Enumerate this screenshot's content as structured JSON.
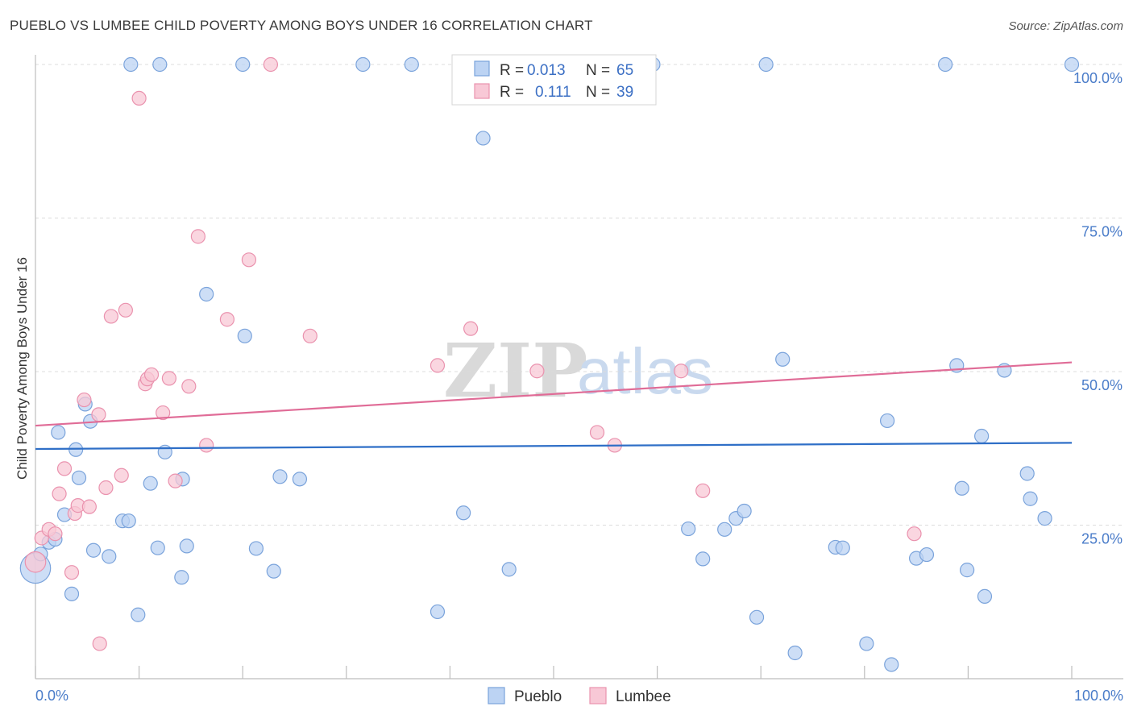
{
  "title": "PUEBLO VS LUMBEE CHILD POVERTY AMONG BOYS UNDER 16 CORRELATION CHART",
  "source": "Source: ZipAtlas.com",
  "watermark": {
    "zip": "ZIP",
    "atlas": "atlas"
  },
  "colors": {
    "pueblo_fill": "#bcd3f3",
    "pueblo_stroke": "#7aa3db",
    "pueblo_line": "#2f6fc7",
    "lumbee_fill": "#f8c8d6",
    "lumbee_stroke": "#ea92ae",
    "lumbee_line": "#e06c97",
    "grid": "#dcdcdc",
    "axis_label": "#4a7cc9"
  },
  "legend": {
    "pueblo": {
      "r_label": "R = ",
      "r_value": "0.013",
      "n_label": "N = ",
      "n_value": "65"
    },
    "lumbee": {
      "r_label": "R = ",
      "r_value": "0.111",
      "n_label": "N = ",
      "n_value": "39"
    }
  },
  "chart_data": {
    "type": "scatter",
    "title": "PUEBLO VS LUMBEE CHILD POVERTY AMONG BOYS UNDER 16 CORRELATION CHART",
    "xlabel": "",
    "ylabel": "Child Poverty Among Boys Under 16",
    "xlim": [
      0,
      100
    ],
    "ylim": [
      0,
      100
    ],
    "x_tick_labels": [
      "0.0%",
      "100.0%"
    ],
    "y_tick_labels": [
      "25.0%",
      "50.0%",
      "75.0%",
      "100.0%"
    ],
    "y_tick_values": [
      25,
      50,
      75,
      100
    ],
    "legend_position": "top-center",
    "series": [
      {
        "name": "Pueblo",
        "r": 0.013,
        "n": 65,
        "trend": {
          "x": [
            0,
            100
          ],
          "y": [
            37.4,
            38.4
          ]
        },
        "points": [
          [
            0.0,
            18.0,
            2.2
          ],
          [
            0.5,
            20.3,
            1
          ],
          [
            1.3,
            22.2,
            1
          ],
          [
            1.9,
            22.7,
            1
          ],
          [
            2.2,
            40.1,
            1
          ],
          [
            2.8,
            26.7,
            1
          ],
          [
            3.5,
            13.8,
            1
          ],
          [
            3.9,
            37.3,
            1
          ],
          [
            4.2,
            32.7,
            1
          ],
          [
            4.8,
            44.7,
            1
          ],
          [
            5.3,
            41.9,
            1
          ],
          [
            5.6,
            20.9,
            1
          ],
          [
            7.1,
            19.9,
            1
          ],
          [
            8.4,
            25.7,
            1
          ],
          [
            9.0,
            25.7,
            1
          ],
          [
            9.2,
            100.0,
            1
          ],
          [
            9.9,
            10.4,
            1
          ],
          [
            11.1,
            31.8,
            1
          ],
          [
            11.8,
            21.3,
            1
          ],
          [
            12.0,
            100.0,
            1
          ],
          [
            12.5,
            36.9,
            1
          ],
          [
            14.1,
            16.5,
            1
          ],
          [
            14.2,
            32.5,
            1
          ],
          [
            14.6,
            21.6,
            1
          ],
          [
            16.5,
            62.6,
            1
          ],
          [
            20.0,
            100.0,
            1
          ],
          [
            20.2,
            55.8,
            1
          ],
          [
            21.3,
            21.2,
            1
          ],
          [
            23.0,
            17.5,
            1
          ],
          [
            23.6,
            32.9,
            1
          ],
          [
            25.5,
            32.5,
            1
          ],
          [
            31.6,
            100.0,
            1
          ],
          [
            36.3,
            100.0,
            1
          ],
          [
            38.8,
            10.9,
            1
          ],
          [
            41.3,
            27.0,
            1
          ],
          [
            43.2,
            88.0,
            1
          ],
          [
            45.7,
            17.8,
            1
          ],
          [
            59.6,
            100.0,
            1
          ],
          [
            63.0,
            24.4,
            1
          ],
          [
            64.4,
            19.5,
            1
          ],
          [
            66.5,
            24.3,
            1
          ],
          [
            67.6,
            26.1,
            1
          ],
          [
            68.4,
            27.3,
            1
          ],
          [
            69.6,
            10.0,
            1
          ],
          [
            70.5,
            100.0,
            1
          ],
          [
            72.1,
            52.0,
            1
          ],
          [
            73.3,
            4.2,
            1
          ],
          [
            77.2,
            21.4,
            1
          ],
          [
            77.9,
            21.3,
            1
          ],
          [
            80.2,
            5.7,
            1
          ],
          [
            82.2,
            42.0,
            1
          ],
          [
            82.6,
            2.3,
            1
          ],
          [
            85.0,
            19.6,
            1
          ],
          [
            86.0,
            20.2,
            1
          ],
          [
            87.8,
            100.0,
            1
          ],
          [
            88.9,
            51.0,
            1
          ],
          [
            89.4,
            31.0,
            1
          ],
          [
            89.9,
            17.7,
            1
          ],
          [
            91.3,
            39.5,
            1
          ],
          [
            91.6,
            13.4,
            1
          ],
          [
            93.5,
            50.2,
            1
          ],
          [
            95.7,
            33.4,
            1
          ],
          [
            96.0,
            29.3,
            1
          ],
          [
            97.4,
            26.1,
            1
          ],
          [
            100.0,
            100.0,
            1
          ]
        ]
      },
      {
        "name": "Lumbee",
        "r": 0.111,
        "n": 39,
        "trend": {
          "x": [
            0,
            100
          ],
          "y": [
            41.2,
            51.5
          ]
        },
        "points": [
          [
            0.0,
            19.0,
            1.5
          ],
          [
            0.6,
            22.9,
            1
          ],
          [
            1.3,
            24.3,
            1
          ],
          [
            1.9,
            23.6,
            1
          ],
          [
            2.3,
            30.1,
            1
          ],
          [
            2.8,
            34.2,
            1
          ],
          [
            3.5,
            17.3,
            1
          ],
          [
            3.8,
            26.9,
            1
          ],
          [
            4.1,
            28.2,
            1
          ],
          [
            4.7,
            45.4,
            1
          ],
          [
            5.2,
            28.0,
            1
          ],
          [
            6.1,
            43.0,
            1
          ],
          [
            6.2,
            5.7,
            1
          ],
          [
            6.8,
            31.1,
            1
          ],
          [
            7.3,
            59.0,
            1
          ],
          [
            8.3,
            33.1,
            1
          ],
          [
            8.7,
            60.0,
            1
          ],
          [
            10.0,
            94.5,
            1
          ],
          [
            10.6,
            48.0,
            1
          ],
          [
            10.8,
            48.8,
            1
          ],
          [
            11.2,
            49.5,
            1
          ],
          [
            12.3,
            43.3,
            1
          ],
          [
            12.9,
            48.9,
            1
          ],
          [
            13.5,
            32.2,
            1
          ],
          [
            14.8,
            47.6,
            1
          ],
          [
            15.7,
            72.0,
            1
          ],
          [
            16.5,
            38.0,
            1
          ],
          [
            18.5,
            58.5,
            1
          ],
          [
            20.6,
            68.2,
            1
          ],
          [
            22.7,
            100.0,
            1
          ],
          [
            26.5,
            55.8,
            1
          ],
          [
            38.8,
            51.0,
            1
          ],
          [
            42.0,
            57.0,
            1
          ],
          [
            48.4,
            50.1,
            1
          ],
          [
            54.2,
            40.1,
            1
          ],
          [
            55.9,
            38.0,
            1
          ],
          [
            62.3,
            50.1,
            1
          ],
          [
            64.4,
            30.6,
            1
          ],
          [
            84.8,
            23.6,
            1
          ]
        ]
      }
    ]
  }
}
